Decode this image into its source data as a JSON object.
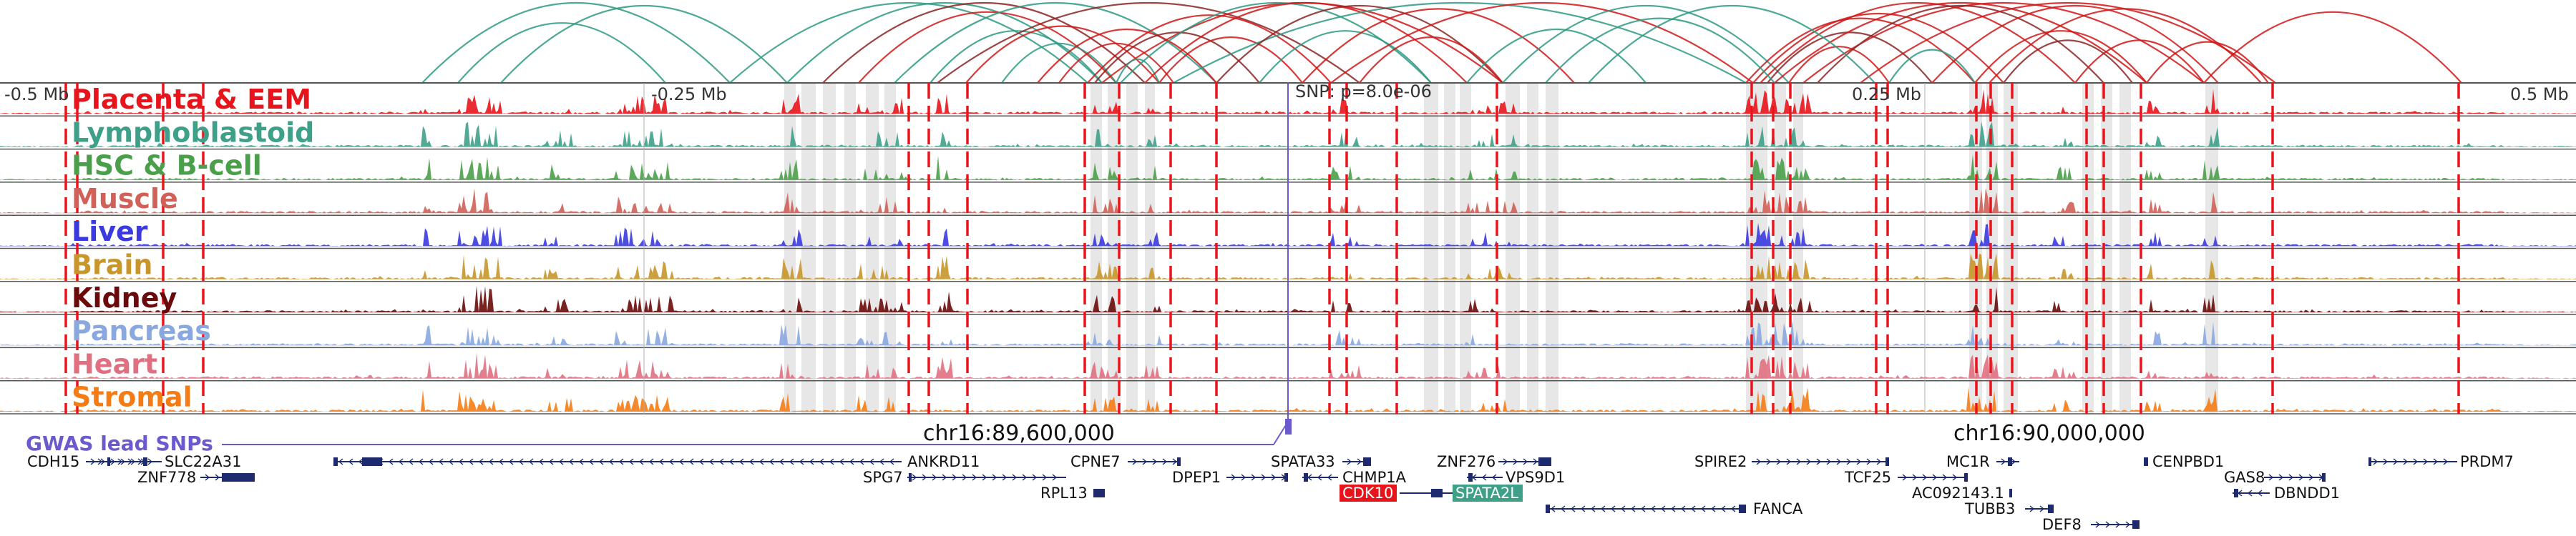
{
  "axis": {
    "ticks": [
      "-0.5 Mb",
      "-0.25 Mb",
      "0.25 Mb",
      "0.5 Mb"
    ],
    "snp_label": "SNP: p=8.0e-06"
  },
  "tracks": [
    {
      "name": "Placenta & EEM",
      "color": "#e8141c"
    },
    {
      "name": "Lymphoblastoid",
      "color": "#3fa08a"
    },
    {
      "name": "HSC & B-cell",
      "color": "#4aa04a"
    },
    {
      "name": "Muscle",
      "color": "#d06058"
    },
    {
      "name": "Liver",
      "color": "#3a3ae0"
    },
    {
      "name": "Brain",
      "color": "#c8962a"
    },
    {
      "name": "Kidney",
      "color": "#6a0a0a"
    },
    {
      "name": "Pancreas",
      "color": "#8aa8e0"
    },
    {
      "name": "Heart",
      "color": "#e07080"
    },
    {
      "name": "Stromal",
      "color": "#f57c14"
    }
  ],
  "loops_colors": {
    "red": "#d01818",
    "dark": "#8b2525",
    "teal": "#2e9a82"
  },
  "coordinates": [
    "chr16:89,600,000",
    "chr16:90,000,000"
  ],
  "gwas_label": "GWAS lead SNPs",
  "genes": [
    {
      "name": "CDH15"
    },
    {
      "name": "SLC22A31"
    },
    {
      "name": "ZNF778"
    },
    {
      "name": "ANKRD11"
    },
    {
      "name": "SPG7"
    },
    {
      "name": "CPNE7"
    },
    {
      "name": "RPL13"
    },
    {
      "name": "DPEP1"
    },
    {
      "name": "SPATA33"
    },
    {
      "name": "CHMP1A"
    },
    {
      "name": "CDK10",
      "highlight": "#e8141c"
    },
    {
      "name": "SPATA2L",
      "highlight": "#3fa08a"
    },
    {
      "name": "ZNF276"
    },
    {
      "name": "VPS9D1"
    },
    {
      "name": "FANCA"
    },
    {
      "name": "SPIRE2"
    },
    {
      "name": "TCF25"
    },
    {
      "name": "MC1R"
    },
    {
      "name": "AC092143.1"
    },
    {
      "name": "TUBB3"
    },
    {
      "name": "DEF8"
    },
    {
      "name": "CENPBD1"
    },
    {
      "name": "GAS8"
    },
    {
      "name": "DBNDD1"
    },
    {
      "name": "PRDM7"
    }
  ]
}
